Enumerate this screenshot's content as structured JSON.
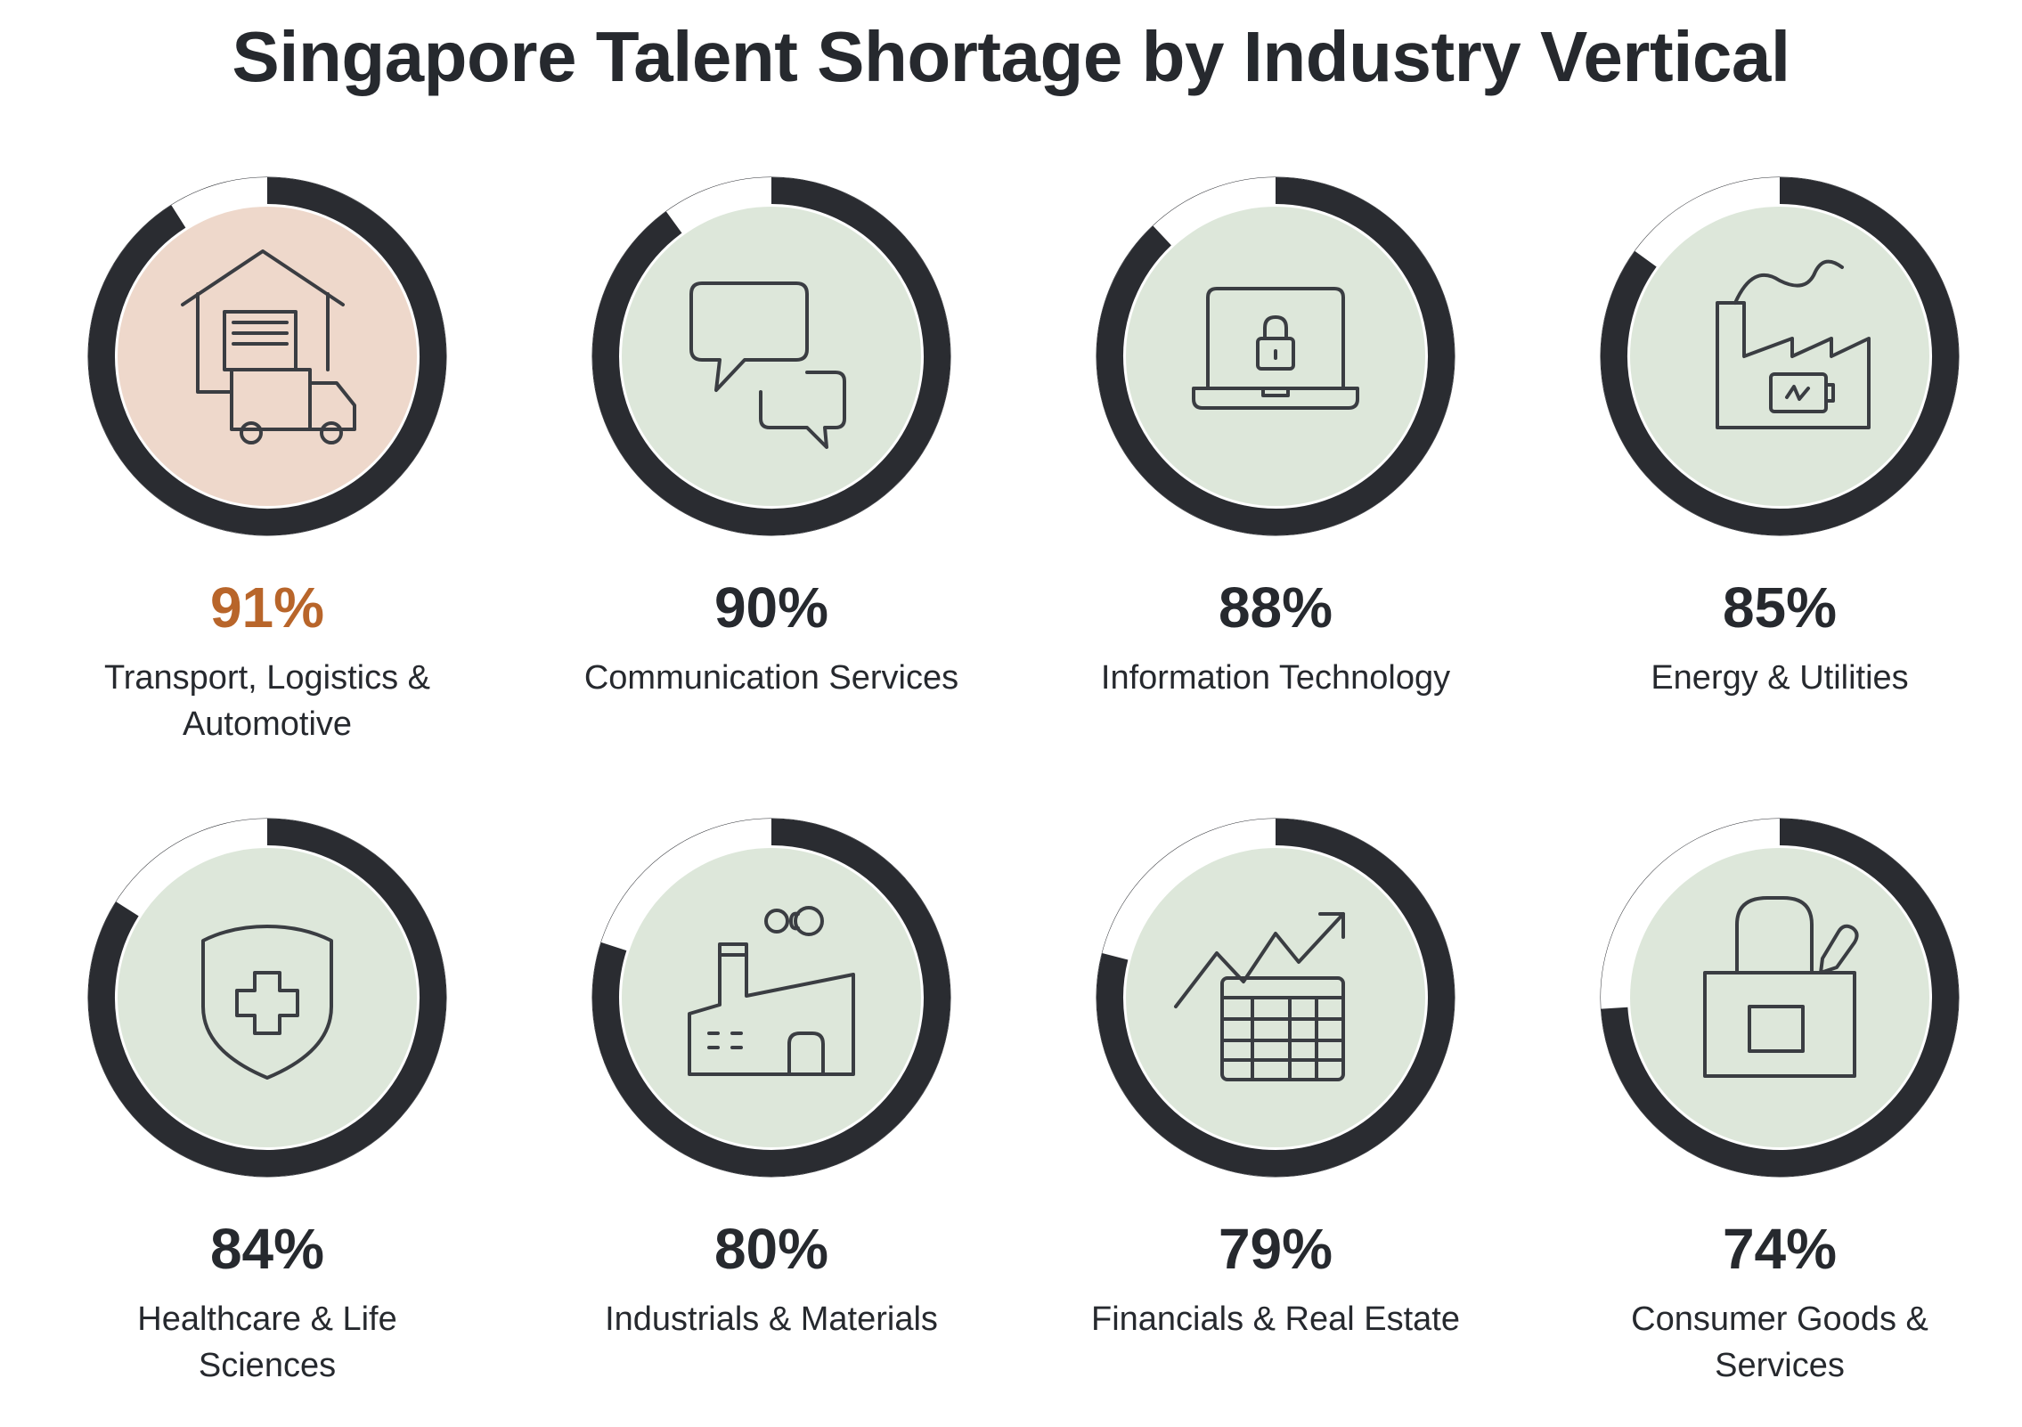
{
  "title": "Singapore Talent Shortage by Industry Vertical",
  "colors": {
    "ring_dark": "#2a2c31",
    "ring_outline": "#2a2c31",
    "fill_default": "#dde7da",
    "fill_highlight": "#eed8cb",
    "pct_default": "#26292e",
    "pct_highlight": "#b8652a"
  },
  "chart_data": {
    "type": "donut-grid",
    "title": "Singapore Talent Shortage by Industry Vertical",
    "unit": "%",
    "items": [
      {
        "label": "Transport, Logistics & Automotive",
        "value": 91,
        "value_label": "91%",
        "icon": "warehouse-truck-icon",
        "highlight": true
      },
      {
        "label": "Communication Services",
        "value": 90,
        "value_label": "90%",
        "icon": "chat-bubbles-icon",
        "highlight": false
      },
      {
        "label": "Information Technology",
        "value": 88,
        "value_label": "88%",
        "icon": "laptop-lock-icon",
        "highlight": false
      },
      {
        "label": "Energy & Utilities",
        "value": 85,
        "value_label": "85%",
        "icon": "factory-battery-icon",
        "highlight": false
      },
      {
        "label": "Healthcare & Life Sciences",
        "value": 84,
        "value_label": "84%",
        "icon": "shield-cross-icon",
        "highlight": false
      },
      {
        "label": "Industrials & Materials",
        "value": 80,
        "value_label": "80%",
        "icon": "factory-icon",
        "highlight": false
      },
      {
        "label": "Financials & Real Estate",
        "value": 79,
        "value_label": "79%",
        "icon": "chart-table-icon",
        "highlight": false
      },
      {
        "label": "Consumer Goods & Services",
        "value": 74,
        "value_label": "74%",
        "icon": "shopping-bag-icon",
        "highlight": false
      }
    ]
  }
}
